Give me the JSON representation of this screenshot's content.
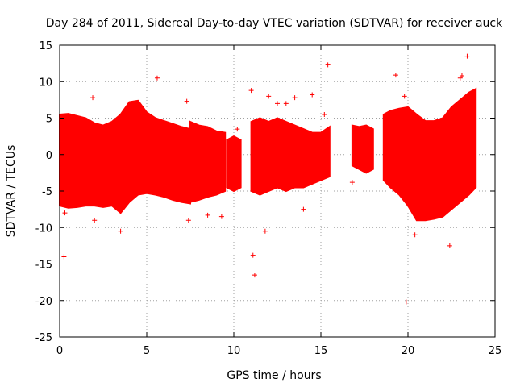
{
  "chart_data": {
    "type": "scatter",
    "title": "Day 284 of 2011, Sidereal Day-to-day VTEC variation (SDTVAR) for receiver auck",
    "xlabel": "GPS time / hours",
    "ylabel": "SDTVAR / TECUs",
    "xlim": [
      0,
      25
    ],
    "ylim": [
      -25,
      15
    ],
    "xticks": [
      "0",
      "5",
      "10",
      "15",
      "20",
      "25"
    ],
    "yticks": [
      "15",
      "10",
      "5",
      "0",
      "-5",
      "-10",
      "-15",
      "-20",
      "-25"
    ],
    "grid": true,
    "color": "#ff0000",
    "series": [
      {
        "name": "SDTVAR band",
        "type": "band",
        "segments": [
          {
            "x": [
              0.0,
              0.5,
              1.0,
              1.5,
              2.0,
              2.5,
              3.0,
              3.5,
              4.0,
              4.5,
              5.0,
              5.5,
              6.0,
              6.5,
              7.0,
              7.5
            ],
            "upper": [
              5.5,
              5.6,
              5.3,
              5.0,
              4.3,
              4.0,
              4.5,
              5.5,
              7.2,
              7.4,
              5.8,
              5.0,
              4.6,
              4.2,
              3.8,
              3.5
            ],
            "lower": [
              -7.0,
              -7.3,
              -7.2,
              -7.0,
              -7.0,
              -7.2,
              -7.0,
              -8.0,
              -6.5,
              -5.5,
              -5.3,
              -5.5,
              -5.8,
              -6.2,
              -6.5,
              -6.7
            ]
          },
          {
            "x": [
              7.5,
              8.0,
              8.5,
              9.0,
              9.5
            ],
            "upper": [
              4.5,
              4.0,
              3.8,
              3.2,
              3.0
            ],
            "lower": [
              -6.5,
              -6.2,
              -5.8,
              -5.5,
              -5.0
            ]
          },
          {
            "x": [
              9.6,
              10.0,
              10.4
            ],
            "upper": [
              2.0,
              2.5,
              2.0
            ],
            "lower": [
              -4.5,
              -5.0,
              -4.5
            ]
          },
          {
            "x": [
              11.0,
              11.5,
              12.0,
              12.5,
              13.0,
              13.5,
              14.0,
              14.5,
              15.0,
              15.5
            ],
            "upper": [
              4.5,
              5.0,
              4.5,
              5.0,
              4.5,
              4.0,
              3.5,
              3.0,
              3.0,
              3.8
            ],
            "lower": [
              -5.0,
              -5.5,
              -5.0,
              -4.5,
              -5.0,
              -4.5,
              -4.5,
              -4.0,
              -3.5,
              -3.0
            ]
          },
          {
            "x": [
              16.8,
              17.2,
              17.6,
              18.0
            ],
            "upper": [
              4.0,
              3.8,
              4.0,
              3.5
            ],
            "lower": [
              -1.5,
              -2.0,
              -2.5,
              -2.0
            ]
          },
          {
            "x": [
              18.6,
              19.0,
              19.5,
              20.0,
              20.5,
              21.0,
              21.5,
              22.0,
              22.5,
              23.0,
              23.5,
              23.9
            ],
            "upper": [
              5.5,
              6.0,
              6.3,
              6.5,
              5.5,
              4.6,
              4.6,
              5.0,
              6.5,
              7.5,
              8.5,
              9.0
            ],
            "lower": [
              -3.5,
              -4.5,
              -5.5,
              -7.0,
              -9.0,
              -9.0,
              -8.8,
              -8.5,
              -7.5,
              -6.5,
              -5.5,
              -4.5
            ]
          }
        ]
      },
      {
        "name": "Outliers",
        "type": "points",
        "x": [
          0.3,
          0.25,
          1.9,
          2.0,
          3.5,
          5.6,
          7.3,
          7.4,
          8.5,
          9.3,
          10.2,
          11.0,
          11.1,
          11.2,
          11.8,
          12.0,
          12.5,
          13.0,
          13.5,
          14.0,
          14.5,
          15.2,
          15.4,
          16.8,
          19.3,
          19.8,
          19.9,
          20.4,
          23.0,
          23.1,
          23.4,
          22.4
        ],
        "y": [
          -8.0,
          -14.0,
          7.8,
          -9.0,
          -10.5,
          10.5,
          7.3,
          -9.0,
          -8.3,
          -8.5,
          3.5,
          8.8,
          -13.8,
          -16.5,
          -10.5,
          8.0,
          7.0,
          7.0,
          7.8,
          -7.5,
          8.2,
          5.5,
          12.3,
          -3.8,
          10.9,
          8.0,
          -20.2,
          -11.0,
          10.5,
          10.8,
          13.5,
          -12.5
        ]
      }
    ]
  }
}
